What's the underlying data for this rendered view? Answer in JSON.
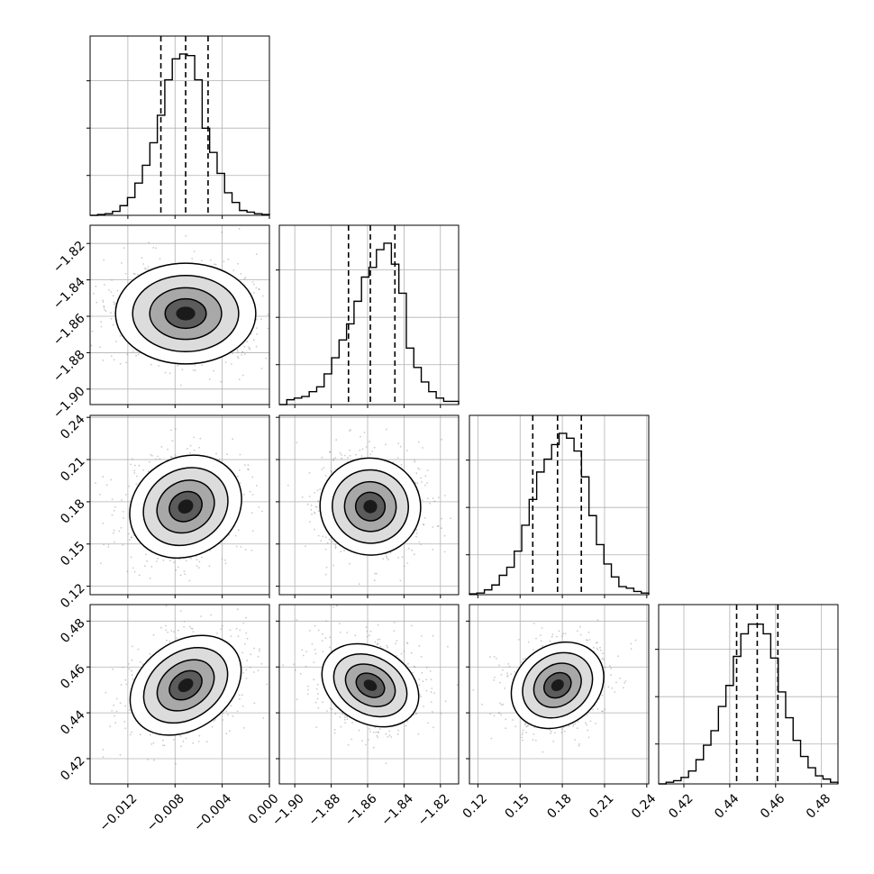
{
  "figure": {
    "colors": {
      "line": "#000000",
      "grid": "#b0b0b0",
      "background": "#ffffff",
      "scatter": "#8c8c8c"
    }
  },
  "chart_data": {
    "type": "corner",
    "grid": true,
    "params": [
      {
        "ticks": [
          -0.012,
          -0.008,
          -0.004,
          0.0
        ],
        "tick_labels": [
          "−0.012",
          "−0.008",
          "−0.004",
          "0.000"
        ],
        "range": [
          -0.0152,
          0.0
        ]
      },
      {
        "ticks": [
          -1.9,
          -1.88,
          -1.86,
          -1.84,
          -1.82
        ],
        "tick_labels": [
          "−1.90",
          "−1.88",
          "−1.86",
          "−1.84",
          "−1.82"
        ],
        "range": [
          -1.9085,
          -1.81
        ]
      },
      {
        "ticks": [
          0.12,
          0.15,
          0.18,
          0.21,
          0.24
        ],
        "tick_labels": [
          "0.12",
          "0.15",
          "0.18",
          "0.21",
          "0.24"
        ],
        "range": [
          0.114,
          0.2414
        ]
      },
      {
        "ticks": [
          0.42,
          0.44,
          0.46,
          0.48
        ],
        "tick_labels": [
          "0.42",
          "0.44",
          "0.46",
          "0.48"
        ],
        "range": [
          0.409,
          0.4872
        ]
      }
    ],
    "quantiles": [
      [
        -0.0092,
        -0.0071,
        -0.0052
      ],
      [
        -1.8705,
        -1.8585,
        -1.845
      ],
      [
        0.159,
        0.1766,
        0.1935
      ],
      [
        0.443,
        0.452,
        0.461
      ]
    ],
    "histograms": [
      [
        0.0,
        0.005,
        0.01,
        0.025,
        0.06,
        0.11,
        0.2,
        0.31,
        0.45,
        0.62,
        0.84,
        0.97,
        1.0,
        0.99,
        0.84,
        0.54,
        0.39,
        0.26,
        0.14,
        0.08,
        0.03,
        0.02,
        0.01,
        0.005
      ],
      [
        0.0,
        0.03,
        0.04,
        0.05,
        0.08,
        0.11,
        0.19,
        0.29,
        0.4,
        0.5,
        0.64,
        0.79,
        0.85,
        0.96,
        1.0,
        0.87,
        0.69,
        0.35,
        0.23,
        0.14,
        0.08,
        0.04,
        0.02,
        0.02
      ],
      [
        0.005,
        0.01,
        0.03,
        0.06,
        0.12,
        0.17,
        0.27,
        0.43,
        0.59,
        0.76,
        0.84,
        0.93,
        1.0,
        0.97,
        0.89,
        0.73,
        0.49,
        0.31,
        0.19,
        0.11,
        0.05,
        0.04,
        0.02,
        0.01
      ],
      [
        0.0,
        0.01,
        0.02,
        0.04,
        0.08,
        0.15,
        0.24,
        0.33,
        0.48,
        0.61,
        0.79,
        0.93,
        0.99,
        0.99,
        0.93,
        0.78,
        0.57,
        0.41,
        0.27,
        0.17,
        0.1,
        0.05,
        0.03,
        0.01
      ]
    ],
    "pairs": [
      {
        "x": 0,
        "y": 1,
        "center": [
          -0.0071,
          -1.8585
        ],
        "ellipse": {
          "rx": 0.0029,
          "ry": 0.0135,
          "rot": 0
        }
      },
      {
        "x": 0,
        "y": 2,
        "center": [
          -0.0071,
          0.1766
        ],
        "ellipse": {
          "rx": 0.0024,
          "ry": 0.017,
          "rot": 30
        }
      },
      {
        "x": 1,
        "y": 2,
        "center": [
          -1.8585,
          0.1766
        ],
        "ellipse": {
          "rx": 0.0135,
          "ry": 0.0168,
          "rot": -10
        }
      },
      {
        "x": 0,
        "y": 3,
        "center": [
          -0.0071,
          0.452
        ],
        "ellipse": {
          "rx": 0.0025,
          "ry": 0.0093,
          "rot": 35
        }
      },
      {
        "x": 1,
        "y": 3,
        "center": [
          -1.8585,
          0.452
        ],
        "ellipse": {
          "rx": 0.0138,
          "ry": 0.008,
          "rot": -30
        }
      },
      {
        "x": 2,
        "y": 3,
        "center": [
          0.1766,
          0.452
        ],
        "ellipse": {
          "rx": 0.017,
          "ry": 0.0085,
          "rot": 35
        }
      }
    ]
  }
}
